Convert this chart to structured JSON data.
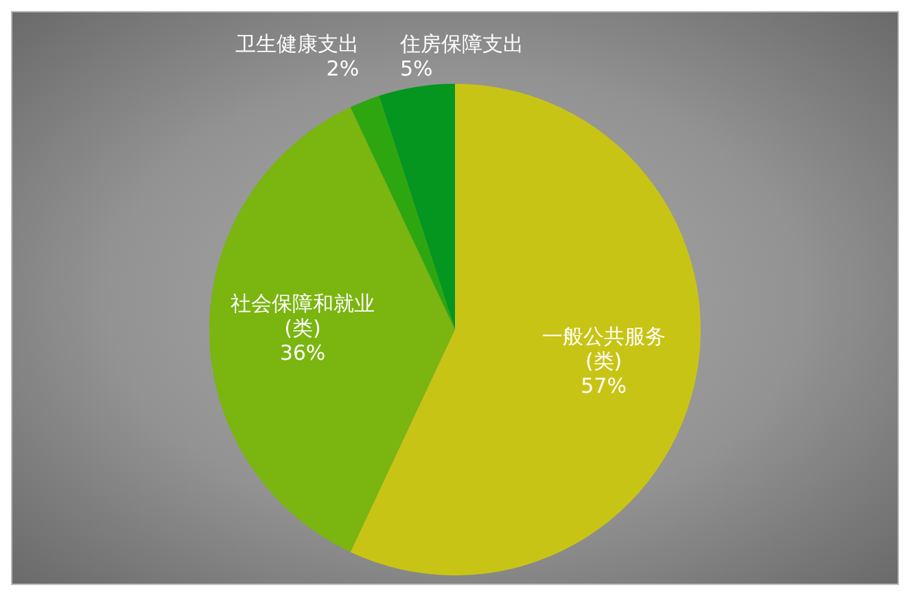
{
  "chart_data": {
    "type": "pie",
    "categories": [
      "一般公共服务\n(类)",
      "社会保障和就业\n(类)",
      "卫生健康支出",
      "住房保障支出"
    ],
    "values": [
      57,
      36,
      2,
      5
    ],
    "colors": [
      "#c8c415",
      "#7ab510",
      "#2ea610",
      "#04961e"
    ],
    "value_labels": [
      "57%",
      "36%",
      "2%",
      "5%"
    ],
    "legend": false
  }
}
